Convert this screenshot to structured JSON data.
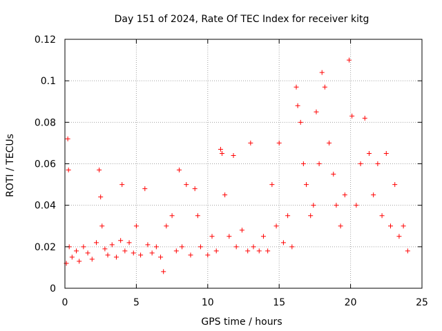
{
  "chart_data": {
    "type": "scatter",
    "title": "Day 151 of 2024, Rate Of TEC Index for receiver kitg",
    "xlabel": "GPS time / hours",
    "ylabel": "ROTI / TECUs",
    "xlim": [
      0,
      25
    ],
    "ylim": [
      0,
      0.12
    ],
    "xticks": [
      0,
      5,
      10,
      15,
      20,
      25
    ],
    "xtick_labels": [
      "0",
      "5",
      "10",
      "15",
      "20",
      "25"
    ],
    "yticks": [
      0,
      0.02,
      0.04,
      0.06,
      0.08,
      0.1,
      0.12
    ],
    "ytick_labels": [
      "0",
      "0.02",
      "0.04",
      "0.06",
      "0.08",
      "0.1",
      "0.12"
    ],
    "grid": true,
    "marker": "+",
    "series": [
      {
        "name": "ROTI",
        "color": "#ff0000",
        "x": [
          0.1,
          0.2,
          0.25,
          0.3,
          0.5,
          0.8,
          1.0,
          1.3,
          1.6,
          1.9,
          2.2,
          2.4,
          2.5,
          2.6,
          2.8,
          3.0,
          3.3,
          3.6,
          3.9,
          4.0,
          4.2,
          4.5,
          4.8,
          5.0,
          5.3,
          5.6,
          5.8,
          6.1,
          6.4,
          6.7,
          6.9,
          7.1,
          7.5,
          7.8,
          8.0,
          8.2,
          8.5,
          8.8,
          9.1,
          9.3,
          9.5,
          10.0,
          10.3,
          10.6,
          10.9,
          11.0,
          11.2,
          11.5,
          11.8,
          12.0,
          12.4,
          12.8,
          13.0,
          13.2,
          13.6,
          13.9,
          14.2,
          14.5,
          14.8,
          15.0,
          15.3,
          15.6,
          15.9,
          16.2,
          16.3,
          16.5,
          16.7,
          16.9,
          17.2,
          17.4,
          17.6,
          17.8,
          18.0,
          18.2,
          18.5,
          18.8,
          19.0,
          19.3,
          19.6,
          19.9,
          20.1,
          20.4,
          20.7,
          21.0,
          21.3,
          21.6,
          21.9,
          22.2,
          22.5,
          22.8,
          23.1,
          23.4,
          23.7,
          24.0
        ],
        "y": [
          0.012,
          0.072,
          0.057,
          0.02,
          0.015,
          0.018,
          0.013,
          0.02,
          0.017,
          0.014,
          0.022,
          0.057,
          0.044,
          0.03,
          0.019,
          0.016,
          0.021,
          0.015,
          0.023,
          0.05,
          0.018,
          0.022,
          0.017,
          0.03,
          0.016,
          0.048,
          0.021,
          0.017,
          0.02,
          0.015,
          0.008,
          0.03,
          0.035,
          0.018,
          0.057,
          0.02,
          0.05,
          0.016,
          0.048,
          0.035,
          0.02,
          0.016,
          0.025,
          0.018,
          0.067,
          0.065,
          0.045,
          0.025,
          0.064,
          0.02,
          0.028,
          0.018,
          0.07,
          0.02,
          0.018,
          0.025,
          0.018,
          0.05,
          0.03,
          0.07,
          0.022,
          0.035,
          0.02,
          0.097,
          0.088,
          0.08,
          0.06,
          0.05,
          0.035,
          0.04,
          0.085,
          0.06,
          0.104,
          0.097,
          0.07,
          0.055,
          0.04,
          0.03,
          0.045,
          0.11,
          0.083,
          0.04,
          0.06,
          0.082,
          0.065,
          0.045,
          0.06,
          0.035,
          0.065,
          0.03,
          0.05,
          0.025,
          0.03,
          0.018
        ]
      }
    ]
  }
}
